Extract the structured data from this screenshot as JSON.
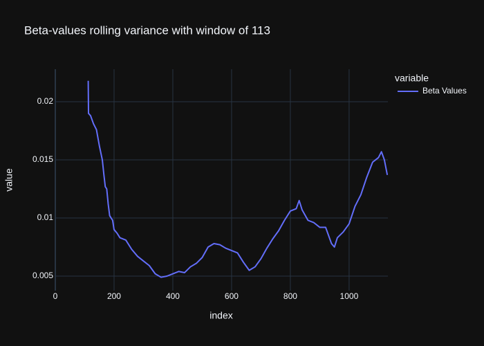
{
  "chart_data": {
    "type": "line",
    "title": "Beta-values rolling variance with window of 113",
    "x_label": "index",
    "y_label": "value",
    "legend_title": "variable",
    "x": [
      112,
      113,
      120,
      130,
      140,
      150,
      160,
      165,
      170,
      175,
      180,
      185,
      195,
      200,
      210,
      220,
      240,
      260,
      280,
      300,
      320,
      340,
      360,
      380,
      400,
      420,
      440,
      460,
      480,
      500,
      520,
      540,
      560,
      580,
      600,
      620,
      640,
      660,
      680,
      700,
      720,
      740,
      760,
      780,
      800,
      820,
      830,
      840,
      860,
      880,
      900,
      920,
      940,
      950,
      960,
      980,
      1000,
      1020,
      1040,
      1060,
      1080,
      1100,
      1110,
      1120,
      1130
    ],
    "series": [
      {
        "name": "Beta Values",
        "color": "#636efa",
        "values": [
          0.0218,
          0.019,
          0.0188,
          0.0181,
          0.0176,
          0.0162,
          0.015,
          0.0138,
          0.0127,
          0.0125,
          0.0112,
          0.0102,
          0.0098,
          0.009,
          0.0087,
          0.0083,
          0.0081,
          0.0073,
          0.0067,
          0.0063,
          0.0059,
          0.0052,
          0.0049,
          0.005,
          0.0052,
          0.0054,
          0.0053,
          0.0058,
          0.0061,
          0.0066,
          0.0075,
          0.0078,
          0.0077,
          0.0074,
          0.0072,
          0.007,
          0.0062,
          0.0055,
          0.0058,
          0.0065,
          0.0074,
          0.0082,
          0.0089,
          0.0098,
          0.0106,
          0.0108,
          0.0115,
          0.0107,
          0.0098,
          0.0096,
          0.0092,
          0.0092,
          0.0078,
          0.0075,
          0.0083,
          0.0088,
          0.0095,
          0.011,
          0.012,
          0.0135,
          0.0148,
          0.0152,
          0.0157,
          0.015,
          0.0137
        ]
      }
    ],
    "xlim": [
      0,
      1132
    ],
    "ylim": [
      0.00375,
      0.0228
    ],
    "xticks": [
      0,
      200,
      400,
      600,
      800,
      1000
    ],
    "yticks": [
      0.005,
      0.01,
      0.015,
      0.02
    ],
    "grid": true
  }
}
